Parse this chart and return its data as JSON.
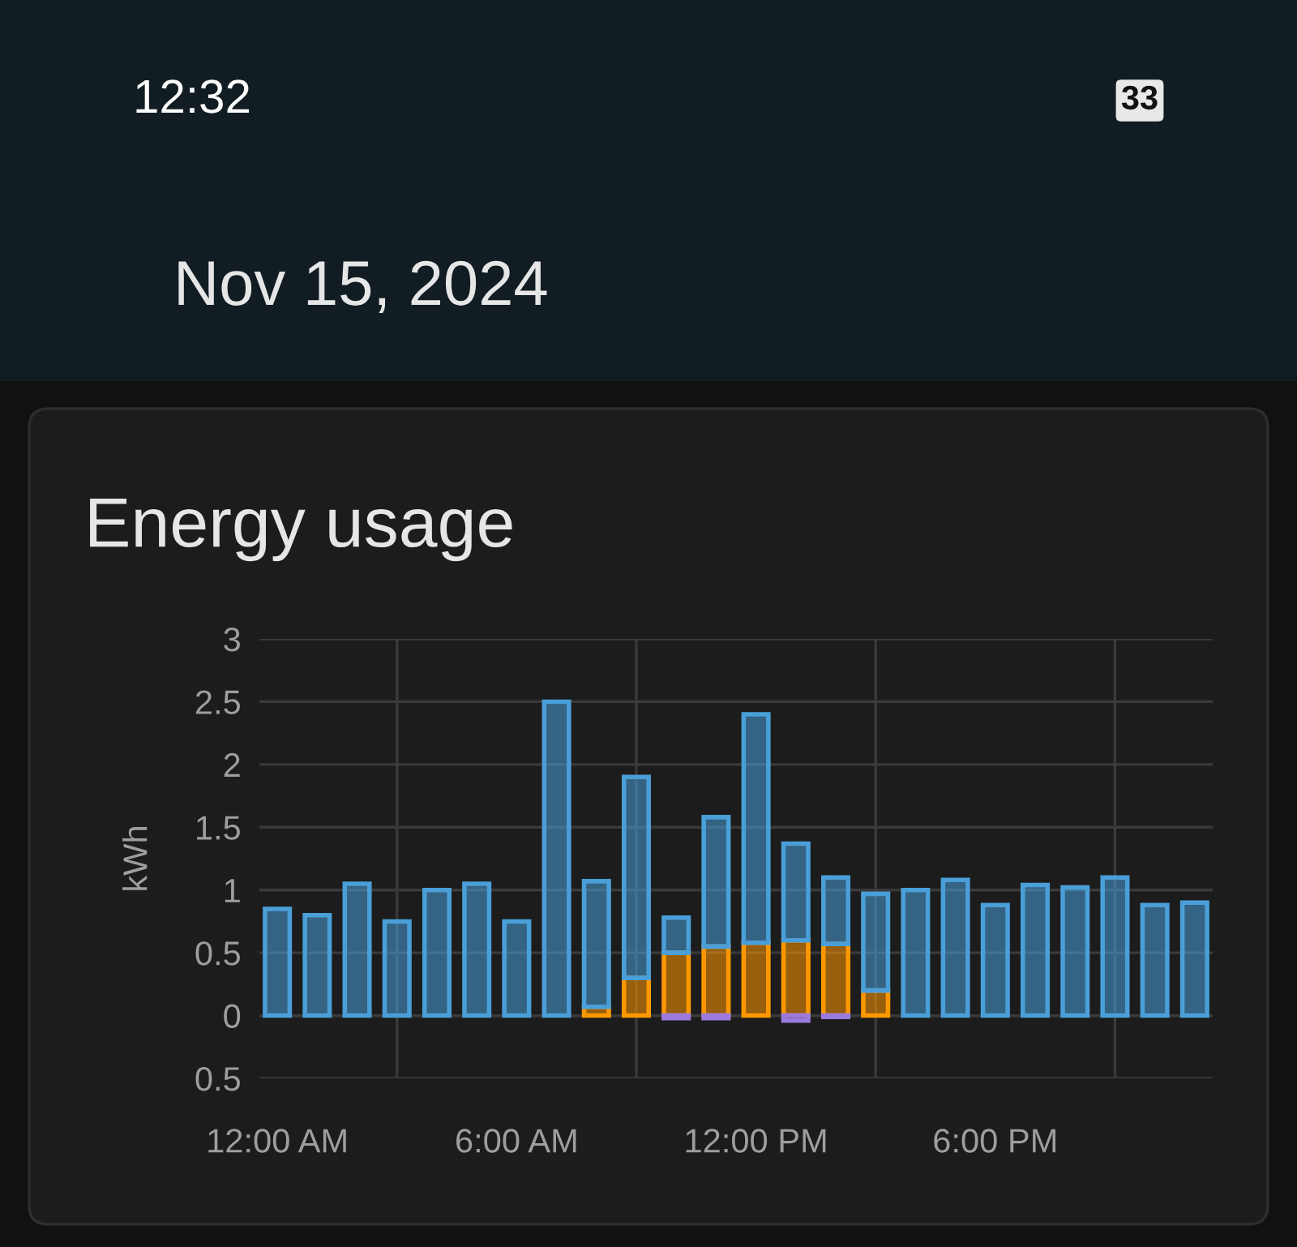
{
  "chart_data": {
    "type": "bar",
    "title": "Energy usage",
    "subtitle": "Nov 15, 2024",
    "annotations": [
      "12:32",
      "33"
    ],
    "ylabel": "kWh",
    "stacked": true,
    "x": [
      0,
      1,
      2,
      3,
      4,
      5,
      6,
      7,
      8,
      9,
      10,
      11,
      12,
      13,
      14,
      15,
      16,
      17,
      18,
      19,
      20,
      21,
      22,
      23
    ],
    "series": [
      {
        "color": "#ff9800",
        "values": [
          null,
          null,
          null,
          null,
          null,
          null,
          null,
          null,
          0.07,
          0.3,
          0.5,
          0.55,
          0.58,
          0.6,
          0.57,
          0.2,
          null,
          null,
          null,
          null,
          null,
          null,
          null,
          null
        ]
      },
      {
        "color": "#4a9fd8",
        "values": [
          0.85,
          0.8,
          1.05,
          0.75,
          1.0,
          1.05,
          0.75,
          2.5,
          1.0,
          1.6,
          0.28,
          1.03,
          1.82,
          0.77,
          0.53,
          0.77,
          1.0,
          1.08,
          0.88,
          1.04,
          1.02,
          1.1,
          0.88,
          0.9
        ]
      },
      {
        "color": "#9b7be0",
        "values": [
          null,
          null,
          null,
          null,
          null,
          null,
          null,
          null,
          null,
          null,
          -0.02,
          -0.02,
          null,
          -0.04,
          -0.01,
          null,
          null,
          null,
          null,
          null,
          null,
          null,
          null,
          null
        ]
      }
    ],
    "xlim": [
      -0.45,
      23.45
    ],
    "xticks": [
      {
        "value": 0,
        "label": "12:00 AM"
      },
      {
        "value": 3,
        "label": null
      },
      {
        "value": 6,
        "label": "6:00 AM"
      },
      {
        "value": 9,
        "label": null
      },
      {
        "value": 12,
        "label": "12:00 PM"
      },
      {
        "value": 15,
        "label": null
      },
      {
        "value": 18,
        "label": "6:00 PM"
      },
      {
        "value": 21,
        "label": null
      }
    ],
    "ylim": [
      -0.5,
      3
    ],
    "yticks": [
      {
        "value": -0.5,
        "label": "0.5"
      },
      0,
      0.5,
      1,
      1.5,
      2,
      2.5,
      3
    ],
    "grid": true,
    "legend": false
  }
}
